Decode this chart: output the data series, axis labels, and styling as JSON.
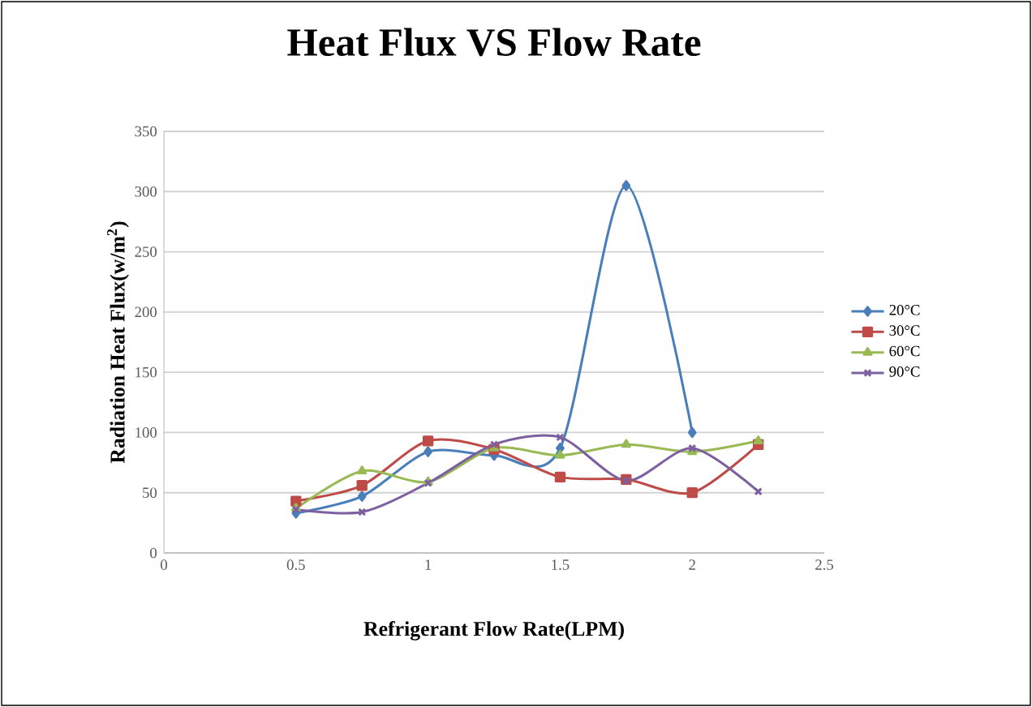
{
  "chart_data": {
    "type": "line",
    "title": "Heat Flux VS Flow Rate",
    "xlabel": "Refrigerant Flow Rate(LPM)",
    "ylabel": "Radiation Heat Flux(w/m$^{2}$)",
    "x": [
      0.5,
      0.75,
      1.0,
      1.25,
      1.5,
      1.75,
      2.0,
      2.25
    ],
    "xlim": [
      0,
      2.5
    ],
    "xticks": [
      0,
      0.5,
      1,
      1.5,
      2,
      2.5
    ],
    "ylim": [
      0,
      350
    ],
    "yticks": [
      0,
      50,
      100,
      150,
      200,
      250,
      300,
      350
    ],
    "grid": "y",
    "legend": "right",
    "series": [
      {
        "name": "20°C",
        "color": "#4a7ebb",
        "marker": "diamond",
        "values": [
          33,
          47,
          84,
          81,
          87,
          305,
          100,
          null
        ]
      },
      {
        "name": "30°C",
        "color": "#be4b48",
        "marker": "square",
        "values": [
          43,
          56,
          93,
          86,
          63,
          61,
          50,
          90
        ]
      },
      {
        "name": "60°C",
        "color": "#98b954",
        "marker": "triangle",
        "values": [
          37,
          68,
          59,
          87,
          81,
          90,
          84,
          93
        ]
      },
      {
        "name": "90°C",
        "color": "#7d60a0",
        "marker": "cross",
        "values": [
          36,
          34,
          58,
          90,
          96,
          60,
          87,
          51
        ]
      }
    ]
  }
}
